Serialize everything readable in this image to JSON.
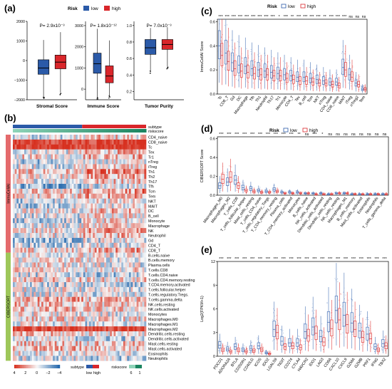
{
  "colors": {
    "low": "#2b5aa8",
    "high": "#d9262b",
    "low_light": "#4a74b8",
    "high_light": "#e04040"
  },
  "panels": {
    "a": "(a)",
    "b": "(b)",
    "c": "(c)",
    "d": "(d)",
    "e": "(e)"
  },
  "risk_legend": {
    "title": "Risk",
    "low": "low",
    "high": "high"
  },
  "chart_data": [
    {
      "panel": "a",
      "type": "box",
      "subplots": [
        {
          "xlabel": "Stromal Score",
          "pvalue": "P= 2.9x10⁻³",
          "yticks": [
            "2000",
            "1000",
            "0",
            "−1000",
            "−2000"
          ],
          "ylim": [
            -2000,
            2000
          ],
          "low": {
            "min": -1850,
            "q1": -700,
            "median": -380,
            "q3": 40,
            "max": 1050
          },
          "high": {
            "min": -1650,
            "q1": -420,
            "median": -80,
            "q3": 280,
            "max": 1450
          }
        },
        {
          "xlabel": "Immune Score",
          "pvalue": "P= 1.8x10⁻¹²",
          "yticks": [
            "3000",
            "2000",
            "1000",
            "0"
          ],
          "ylim": [
            -500,
            3200
          ],
          "low": {
            "min": -400,
            "q1": 750,
            "median": 1200,
            "q3": 1700,
            "max": 2850
          },
          "high": {
            "min": -300,
            "q1": 300,
            "median": 620,
            "q3": 1100,
            "max": 2300
          }
        },
        {
          "xlabel": "Tumor Purity",
          "pvalue": "P= 7.0x10⁻³",
          "yticks": [
            "1.0",
            "0.8",
            "0.6",
            "0.4",
            "0.2"
          ],
          "ylim": [
            0.1,
            1.05
          ],
          "low": {
            "min": 0.45,
            "q1": 0.65,
            "median": 0.73,
            "q3": 0.83,
            "max": 0.97
          },
          "high": {
            "min": 0.5,
            "q1": 0.71,
            "median": 0.77,
            "q3": 0.83,
            "max": 0.98
          }
        }
      ]
    },
    {
      "panel": "b",
      "type": "heatmap",
      "tracks": [
        "subtype",
        "riskscore"
      ],
      "groups": [
        {
          "label": "ImmuCellAI",
          "color": "#e46a6c",
          "rows": [
            "CD4_naive",
            "CD8_naive",
            "Tc",
            "Tex",
            "Tr1",
            "nTreg",
            "iTreg",
            "Th1",
            "Th2",
            "Th17",
            "Tfh",
            "Tcm",
            "Tem",
            "NKT",
            "MAIT",
            "DC",
            "B_cell",
            "Monocyte",
            "Macrophage",
            "NK",
            "Neutrophil",
            "Gd",
            "CD4_T",
            "CD8_T"
          ]
        },
        {
          "label": "CIBERSORT",
          "color": "#9ec75a",
          "rows": [
            "B.cells.naive",
            "B.cells.memory",
            "Plasma.cells",
            "T.cells.CD8",
            "T.cells.CD4.naive",
            "T.cells.CD4.memory.resting",
            "T.CD4.memory.activated",
            "T.cells.follicular.helper",
            "T.cells.regulatory.Tregs.",
            "T.cells.gamma.delta",
            "NK.cells.resting",
            "NK.cells.activated",
            "Monocytes",
            "Macrophages.M0",
            "Macrophages.M1",
            "Macrophages.M2",
            "Dendritic.cells.resting",
            "Dendritic.cells.activated",
            "Mast.cells.resting",
            "Mast.cells.activated",
            "Eosinophils",
            "Neutrophils"
          ]
        }
      ],
      "color_legend": {
        "ticks": [
          "4",
          "2",
          "0",
          "−2",
          "−4"
        ],
        "colors": [
          "#d7301f",
          "#f4a582",
          "#f7f7f7",
          "#92c5de",
          "#2166ac"
        ]
      },
      "subtype_legend": {
        "title": "subtype",
        "low": "low",
        "high": "high"
      },
      "risk_legend": {
        "title": "riskscore",
        "ticks": [
          "6",
          "1"
        ]
      }
    },
    {
      "panel": "c",
      "type": "box",
      "ylabel": "ImmuCellAI Score",
      "yticks": [
        "0.6",
        "0.4",
        "0.2",
        "0.0"
      ],
      "ylim": [
        0,
        0.62
      ],
      "categories": [
        "Tc",
        "CD8_T",
        "Gd",
        "DC",
        "Macrophage",
        "Tfh",
        "Th1",
        "Neutrophil",
        "Th17",
        "Tr1",
        "Monocyte",
        "CD4_T",
        "Tex",
        "B_cell",
        "Tcm",
        "NKT",
        "nTreg",
        "CD4_naive",
        "CD8_naive",
        "MAIT",
        "iTreg",
        "nTreg2",
        "Tem"
      ],
      "significance": [
        "***",
        "***",
        "***",
        "***",
        "***",
        "***",
        "***",
        "***",
        "***",
        "*",
        "***",
        "**",
        "***",
        "***",
        "***",
        "***",
        "**",
        "***",
        "***",
        "***",
        "ns",
        "ns",
        "ns"
      ],
      "low_median": [
        0.4,
        0.34,
        0.26,
        0.24,
        0.23,
        0.21,
        0.2,
        0.19,
        0.18,
        0.17,
        0.16,
        0.15,
        0.14,
        0.14,
        0.13,
        0.12,
        0.11,
        0.1,
        0.1,
        0.22,
        0.16,
        0.09,
        0.04
      ],
      "high_median": [
        0.32,
        0.27,
        0.21,
        0.19,
        0.18,
        0.17,
        0.16,
        0.16,
        0.15,
        0.15,
        0.13,
        0.12,
        0.11,
        0.11,
        0.1,
        0.09,
        0.09,
        0.08,
        0.07,
        0.2,
        0.14,
        0.08,
        0.04
      ]
    },
    {
      "panel": "d",
      "type": "box",
      "ylabel": "CIBERSORT Score",
      "yticks": [
        "0.6",
        "0.4",
        "0.2",
        "0.0"
      ],
      "ylim": [
        0,
        0.62
      ],
      "categories": [
        "Macrophages_M0",
        "Macrophages_M2",
        "T_cells_CD8",
        "T_cells_follicular_helper",
        "Mast_cells_resting",
        "T_cells_CD4_naive",
        "T_cells_regulatory_Tregs",
        "T_CD4_memory_resting",
        "Plasma_cells",
        "T_CD4_memory_activated",
        "Monocytes",
        "B_cells_naive",
        "NK_cells_activated",
        "Dendritic_cells_activated",
        "Dendritic_cells_resting",
        "NK_cells_resting",
        "Macrophages_M1",
        "B_cells_memory",
        "Mast_cells_activated",
        "Eosinophils",
        "Neutrophils",
        "T_cells_gamma_delta"
      ],
      "significance": [
        "***",
        "***",
        "***",
        "***",
        "***",
        "***",
        "***",
        "***",
        "***",
        "***",
        "**",
        "ns",
        "***",
        "*",
        "ns",
        "ns",
        "ns",
        "ns",
        "ns",
        "ns",
        "ns",
        "ns"
      ],
      "low_median": [
        0.1,
        0.14,
        0.16,
        0.08,
        0.07,
        0.05,
        0.04,
        0.06,
        0.03,
        0.03,
        0.03,
        0.02,
        0.02,
        0.02,
        0.01,
        0.02,
        0.02,
        0.01,
        0.01,
        0.01,
        0.01,
        0.01
      ],
      "high_median": [
        0.17,
        0.19,
        0.1,
        0.05,
        0.04,
        0.03,
        0.03,
        0.04,
        0.02,
        0.02,
        0.02,
        0.02,
        0.01,
        0.01,
        0.01,
        0.02,
        0.02,
        0.01,
        0.01,
        0.01,
        0.01,
        0.01
      ]
    },
    {
      "panel": "e",
      "type": "box",
      "ylabel": "Log2(FPKM+1)",
      "yticks": [
        "12",
        "9",
        "6",
        "3",
        "0"
      ],
      "ylim": [
        0,
        12
      ],
      "categories": [
        "PDCD1",
        "ADORA2A",
        "BTLA",
        "CD200R1",
        "CD40LG",
        "ICOS",
        "IDO2",
        "LGALS9",
        "TIGIT",
        "CD274",
        "CTLA4",
        "HAVCR2",
        "IDO1",
        "LAG3",
        "CD8A",
        "CXCL10",
        "CXCL9",
        "GZMA",
        "GZMB",
        "PRF1",
        "IFNG",
        "TBX2"
      ],
      "significance": [
        "***",
        "***",
        "***",
        "***",
        "***",
        "***",
        "***",
        "***",
        "***",
        "***",
        "***",
        "***",
        "***",
        "***",
        "***",
        "***",
        "***",
        "***",
        "***",
        "***",
        "***",
        "***"
      ],
      "low_median": [
        1.4,
        0.9,
        1.2,
        0.8,
        1.0,
        1.3,
        0.4,
        3.4,
        1.9,
        1.7,
        1.7,
        3.1,
        3.7,
        2.5,
        4.3,
        5.8,
        5.2,
        4.2,
        3.2,
        2.8,
        1.2,
        1.6
      ],
      "high_median": [
        0.8,
        0.6,
        0.8,
        0.6,
        0.7,
        0.8,
        0.3,
        3.0,
        1.2,
        1.3,
        1.1,
        2.6,
        2.9,
        1.8,
        3.5,
        4.6,
        4.0,
        3.4,
        2.4,
        2.2,
        0.8,
        1.3
      ]
    }
  ]
}
